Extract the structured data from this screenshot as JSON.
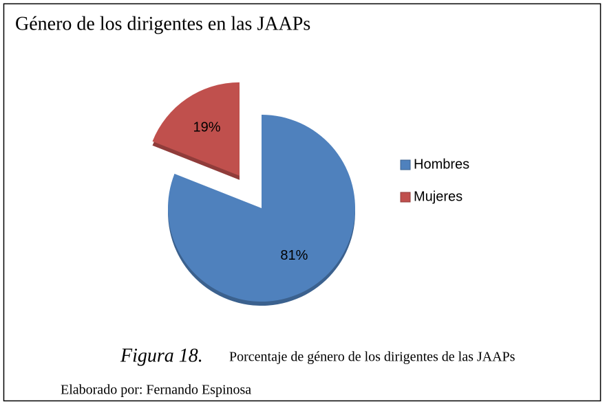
{
  "chart_data": {
    "type": "pie",
    "title": "Género de los dirigentes en las JAAPs",
    "categories": [
      "Hombres",
      "Mujeres"
    ],
    "values": [
      81,
      19
    ],
    "value_labels": [
      "81%",
      "19%"
    ],
    "colors": [
      "#4f81bd",
      "#c0504d"
    ],
    "exploded": [
      false,
      true
    ],
    "legend": "right",
    "caption_label": "Figura 18.",
    "caption": "Porcentaje de género de los dirigentes de las JAAPs",
    "credit": "Elaborado por: Fernando Espinosa"
  }
}
